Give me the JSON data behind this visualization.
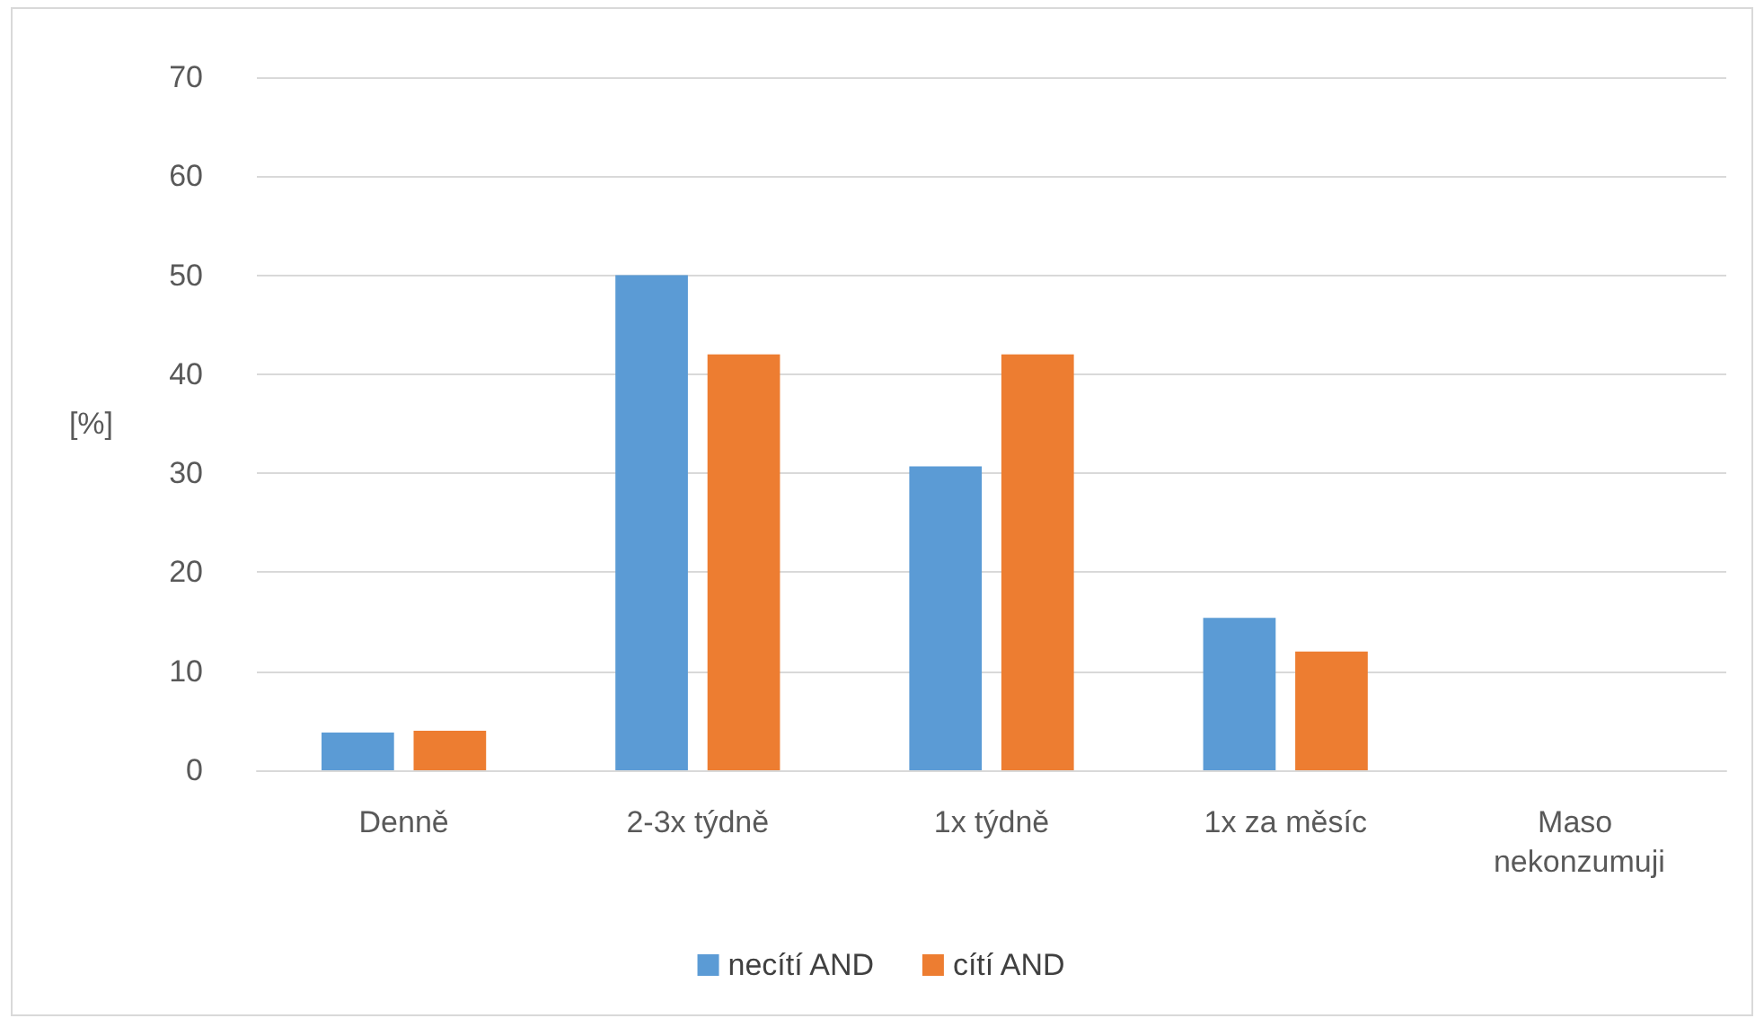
{
  "chart_data": {
    "type": "bar",
    "ylabel": "[%]",
    "categories": [
      "Denně",
      "2-3x týdně",
      "1x týdně",
      "1x za měsíc",
      "Maso nekonzumuji"
    ],
    "series": [
      {
        "name": "necítí AND",
        "color": "#5b9bd5",
        "values": [
          3.8,
          50,
          30.7,
          15.4,
          0
        ]
      },
      {
        "name": "cítí AND",
        "color": "#ed7d31",
        "values": [
          4,
          42,
          42,
          12,
          0
        ]
      }
    ],
    "ylim": [
      0,
      70
    ],
    "yticks": [
      0,
      10,
      20,
      30,
      40,
      50,
      60,
      70
    ],
    "grid": "y",
    "legend": "bottom"
  }
}
